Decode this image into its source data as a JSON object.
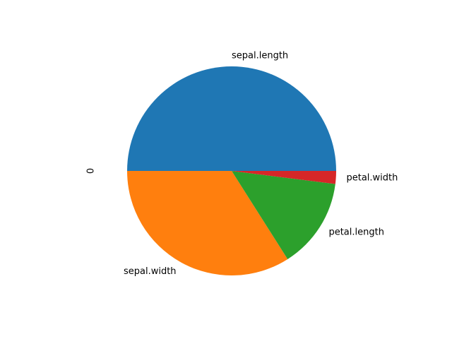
{
  "chart_data": {
    "type": "pie",
    "ylabel": "0",
    "categories": [
      "sepal.length",
      "sepal.width",
      "petal.length",
      "petal.width"
    ],
    "values": [
      50.0,
      34.0,
      14.0,
      2.0
    ],
    "colors": [
      "#1f77b4",
      "#ff7f0e",
      "#2ca02c",
      "#d62728"
    ],
    "start_angle": 0,
    "direction": "counterclockwise",
    "legend": "none"
  }
}
